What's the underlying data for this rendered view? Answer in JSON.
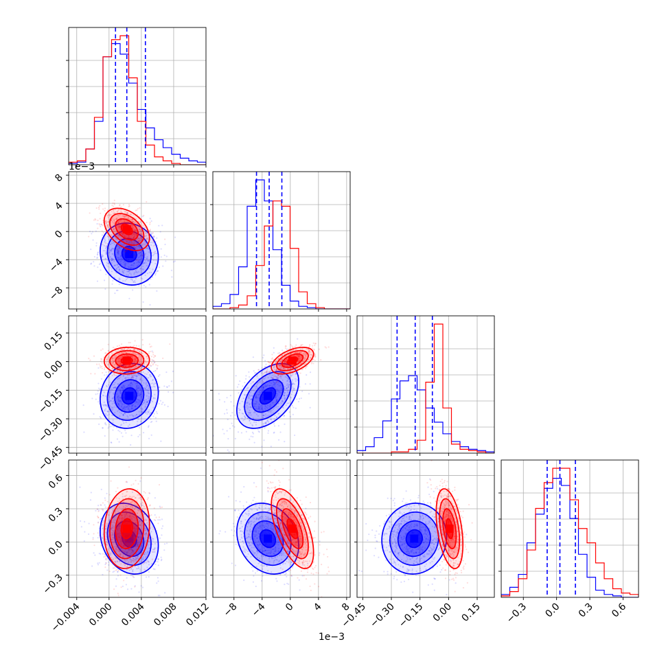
{
  "chart_data": {
    "type": "corner",
    "grid": true,
    "colors": {
      "series_a": "#0000ff",
      "series_b": "#ff0000"
    },
    "parameters": [
      {
        "range": [
          -0.005,
          0.012
        ],
        "ticks": [
          "−0.004",
          "0.000",
          "0.004",
          "0.008",
          "0.012"
        ],
        "tick_values": [
          -0.004,
          0.0,
          0.004,
          0.008,
          0.012
        ],
        "offset_text": ""
      },
      {
        "range": [
          -0.011,
          0.0085
        ],
        "ticks": [
          "−8",
          "−4",
          "0",
          "4",
          "8"
        ],
        "tick_values": [
          -0.008,
          -0.004,
          0.0,
          0.004,
          0.008
        ],
        "offset_text": "1e−3"
      },
      {
        "range": [
          -0.48,
          0.24
        ],
        "ticks": [
          "−0.45",
          "−0.30",
          "−0.15",
          "0.00",
          "0.15"
        ],
        "tick_values": [
          -0.45,
          -0.3,
          -0.15,
          0.0,
          0.15
        ],
        "offset_text": ""
      },
      {
        "range": [
          -0.5,
          0.74
        ],
        "ticks": [
          "−0.3",
          "0.0",
          "0.3",
          "0.6"
        ],
        "tick_values": [
          -0.3,
          0.0,
          0.3,
          0.6
        ],
        "offset_text": ""
      }
    ],
    "quantiles_series_a": [
      [
        0.0008,
        0.0022,
        0.0045
      ],
      [
        -0.0048,
        -0.003,
        -0.0012
      ],
      [
        -0.27,
        -0.175,
        -0.085
      ],
      [
        -0.085,
        0.03,
        0.17
      ]
    ],
    "series": [
      {
        "name": "",
        "color": "#0000ff",
        "mean": [
          0.0025,
          -0.0032,
          -0.18,
          0.03
        ],
        "std": [
          0.0018,
          0.0022,
          0.085,
          0.16
        ],
        "histograms": [
          [
            0.01,
            0.02,
            0.12,
            0.33,
            0.82,
            0.92,
            0.84,
            0.62,
            0.42,
            0.28,
            0.19,
            0.13,
            0.08,
            0.05,
            0.03,
            0.02
          ],
          [
            0.02,
            0.04,
            0.11,
            0.32,
            0.78,
            0.98,
            0.82,
            0.45,
            0.18,
            0.06,
            0.02,
            0.01,
            0.0,
            0.0,
            0.0,
            0.0
          ],
          [
            0.02,
            0.05,
            0.12,
            0.25,
            0.42,
            0.56,
            0.6,
            0.49,
            0.35,
            0.24,
            0.15,
            0.09,
            0.05,
            0.03,
            0.02,
            0.01
          ],
          [
            0.02,
            0.07,
            0.16,
            0.38,
            0.58,
            0.76,
            0.83,
            0.78,
            0.55,
            0.3,
            0.14,
            0.05,
            0.02,
            0.01,
            0.0,
            0.0
          ]
        ]
      },
      {
        "name": "",
        "color": "#ff0000",
        "mean": [
          0.0022,
          0.0003,
          0.005,
          0.12
        ],
        "std": [
          0.0014,
          0.0015,
          0.035,
          0.18
        ],
        "histograms": [
          [
            0.02,
            0.03,
            0.12,
            0.36,
            0.82,
            0.95,
            0.98,
            0.66,
            0.33,
            0.15,
            0.06,
            0.03,
            0.01,
            0.0,
            0.0,
            0.0
          ],
          [
            0.0,
            0.0,
            0.01,
            0.03,
            0.1,
            0.33,
            0.63,
            0.82,
            0.78,
            0.46,
            0.13,
            0.04,
            0.01,
            0.0,
            0.0,
            0.0
          ],
          [
            0.0,
            0.0,
            0.0,
            0.0,
            0.01,
            0.01,
            0.03,
            0.1,
            0.55,
            1.0,
            0.35,
            0.07,
            0.03,
            0.02,
            0.01,
            0.0
          ],
          [
            0.01,
            0.04,
            0.13,
            0.33,
            0.62,
            0.8,
            0.9,
            0.9,
            0.68,
            0.48,
            0.38,
            0.24,
            0.13,
            0.06,
            0.03,
            0.02
          ]
        ]
      }
    ],
    "correlations": {
      "series_a": {
        "1-0": -0.1,
        "2-0": 0.1,
        "2-1": 0.45,
        "3-0": -0.2,
        "3-1": -0.2,
        "3-2": 0.05
      },
      "series_b": {
        "1-0": -0.4,
        "2-0": 0.05,
        "2-1": 0.5,
        "3-0": 0.1,
        "3-1": -0.6,
        "3-2": -0.4
      }
    }
  }
}
